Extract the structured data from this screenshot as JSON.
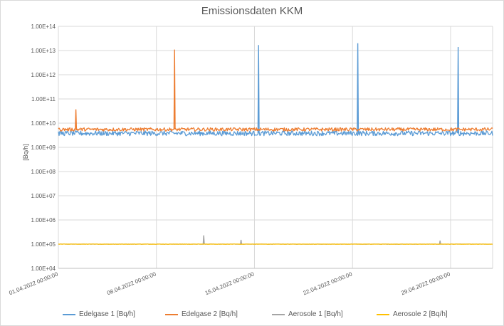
{
  "chart_data": {
    "type": "line",
    "title": "Emissionsdaten KKM",
    "ylabel": "[Bq/h]",
    "xlabel": "",
    "yscale": "log",
    "ylim": [
      10000,
      100000000000000
    ],
    "y_ticks": [
      10000,
      100000,
      1000000,
      10000000,
      100000000,
      1000000000,
      10000000000,
      100000000000,
      1000000000000,
      10000000000000,
      100000000000000
    ],
    "y_tick_labels": [
      "1.00E+04",
      "1.00E+05",
      "1.00E+06",
      "1.00E+07",
      "1.00E+08",
      "1.00E+09",
      "1.00E+10",
      "1.00E+11",
      "1.00E+12",
      "1.00E+13",
      "1.00E+14"
    ],
    "xlim": [
      "2022-04-01 00:00:00",
      "2022-05-02 00:00:00"
    ],
    "x_tick_labels": [
      "01.04.2022 00:00:00",
      "08.04.2022 00:00:00",
      "15.04.2022 00:00:00",
      "22.04.2022 00:00:00",
      "29.04.2022 00:00:00"
    ],
    "grid": true,
    "legend_position": "bottom",
    "series": [
      {
        "name": "Edelgase 1 [Bq/h]",
        "color": "#5b9bd5",
        "baseline": 3800000000,
        "spikes": [
          {
            "x": "2022-04-15 07:00:00",
            "y": 17000000000000
          },
          {
            "x": "2022-04-22 09:00:00",
            "y": 20000000000000
          },
          {
            "x": "2022-04-29 13:00:00",
            "y": 14000000000000
          }
        ]
      },
      {
        "name": "Edelgase 2 [Bq/h]",
        "color": "#ed7d31",
        "baseline": 5500000000,
        "spikes": [
          {
            "x": "2022-04-02 06:00:00",
            "y": 37000000000
          },
          {
            "x": "2022-04-09 07:00:00",
            "y": 11000000000000
          }
        ]
      },
      {
        "name": "Aerosole 1 [Bq/h]",
        "color": "#a5a5a5",
        "baseline": 100000,
        "spikes": [
          {
            "x": "2022-04-11 09:00:00",
            "y": 230000
          },
          {
            "x": "2022-04-14 01:00:00",
            "y": 150000
          },
          {
            "x": "2022-04-28 06:00:00",
            "y": 140000
          }
        ]
      },
      {
        "name": "Aerosole 2 [Bq/h]",
        "color": "#ffc000",
        "baseline": 100000,
        "spikes": []
      }
    ]
  }
}
